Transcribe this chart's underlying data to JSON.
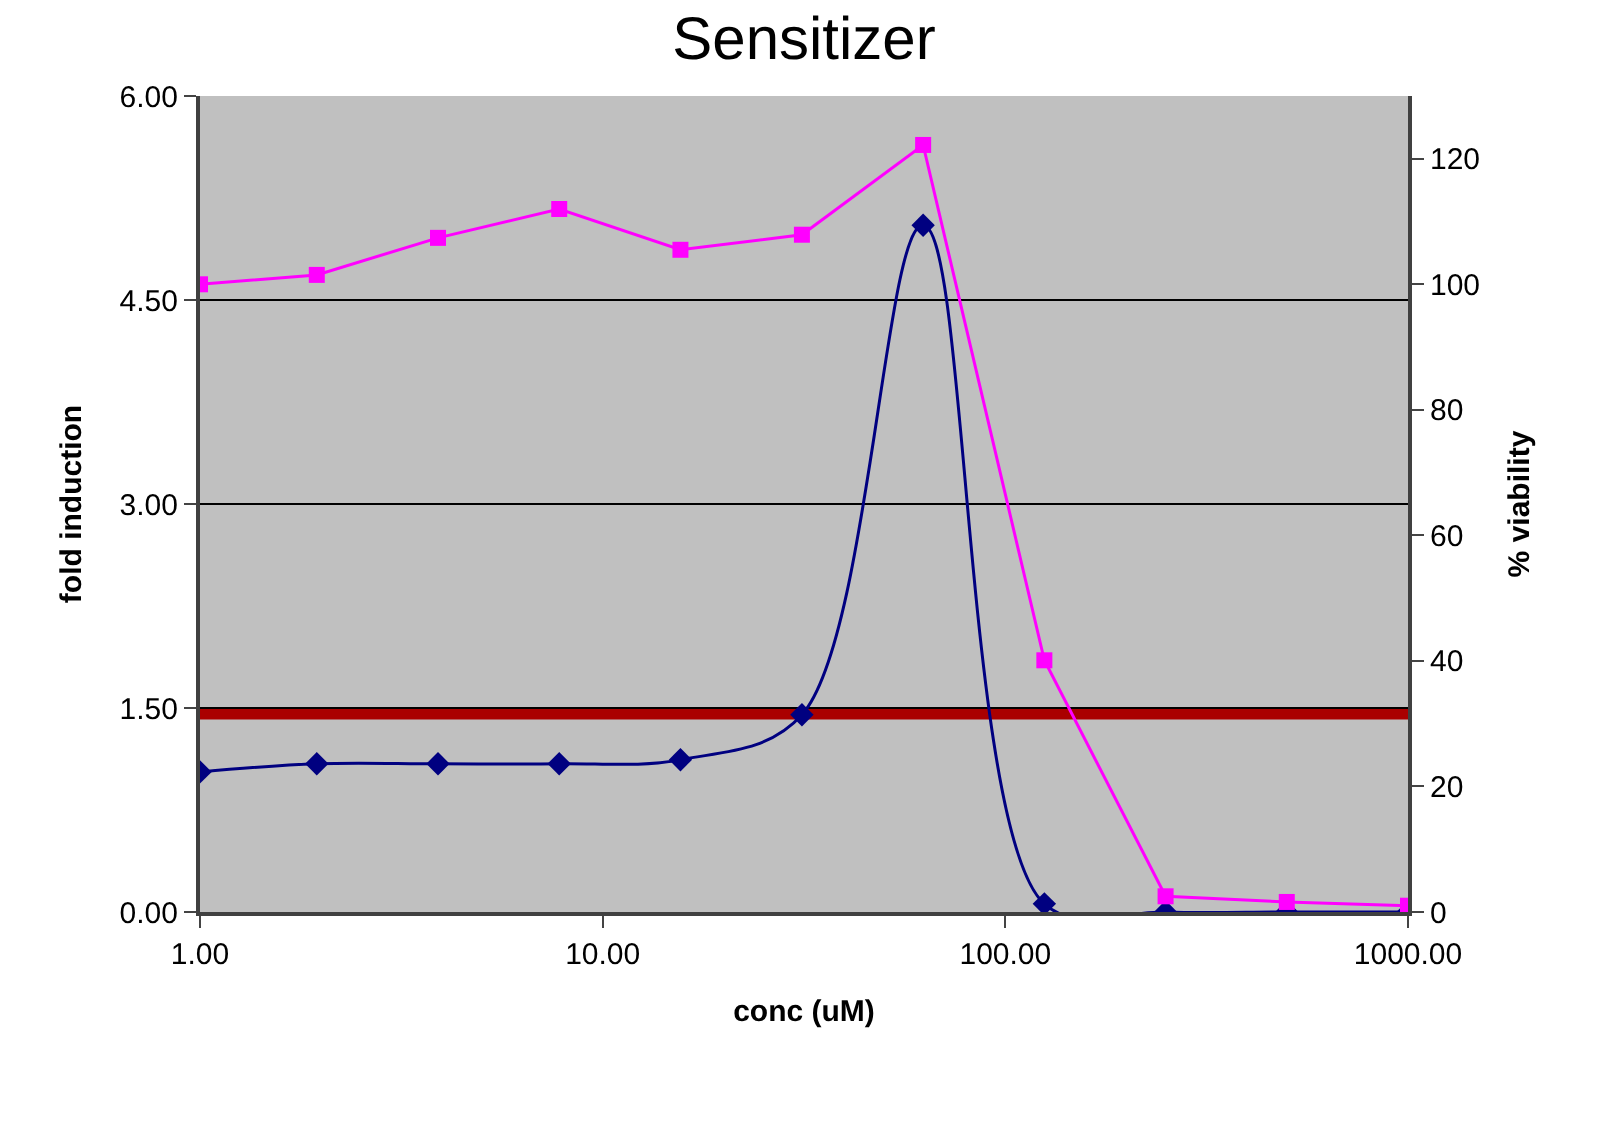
{
  "chart_data": {
    "type": "line",
    "title": "Sensitizer",
    "xlabel": "conc (uM)",
    "ylabel": "fold induction",
    "y2label": "% viability",
    "x": [
      1,
      1.95,
      3.9,
      7.8,
      15.6,
      31.25,
      62.5,
      125,
      250,
      500,
      1000
    ],
    "series": [
      {
        "color": "#000080",
        "marker": "diamond",
        "values": [
          1.03,
          1.09,
          1.09,
          1.09,
          1.12,
          1.45,
          5.05,
          0.06,
          0,
          0,
          0
        ]
      },
      {
        "color": "#ff00ff",
        "marker": "square",
        "axis": "y2",
        "values": [
          100,
          101.5,
          107.4,
          112,
          105.5,
          107.9,
          122.2,
          40.1,
          2.5,
          1.6,
          1
        ]
      }
    ],
    "log": "x",
    "xlim": [
      1,
      1000
    ],
    "xticks": [
      {
        "value": 1,
        "label": "1.00"
      },
      {
        "value": 10,
        "label": "10.00"
      },
      {
        "value": 100,
        "label": "100.00"
      },
      {
        "value": 1000,
        "label": "1000.00"
      }
    ],
    "ylim": [
      0,
      6
    ],
    "yticks": [
      {
        "value": 0,
        "label": "0.00"
      },
      {
        "value": 1.5,
        "label": "1.50"
      },
      {
        "value": 3,
        "label": "3.00"
      },
      {
        "value": 4.5,
        "label": "4.50"
      },
      {
        "value": 6,
        "label": "6.00"
      }
    ],
    "y2lim": [
      0,
      130
    ],
    "y2ticks": [
      0,
      20,
      40,
      60,
      80,
      100,
      120
    ],
    "ref_lines": [
      {
        "axis": "y",
        "value": 1.46,
        "color": "#aa0000"
      }
    ],
    "grid": "y"
  }
}
